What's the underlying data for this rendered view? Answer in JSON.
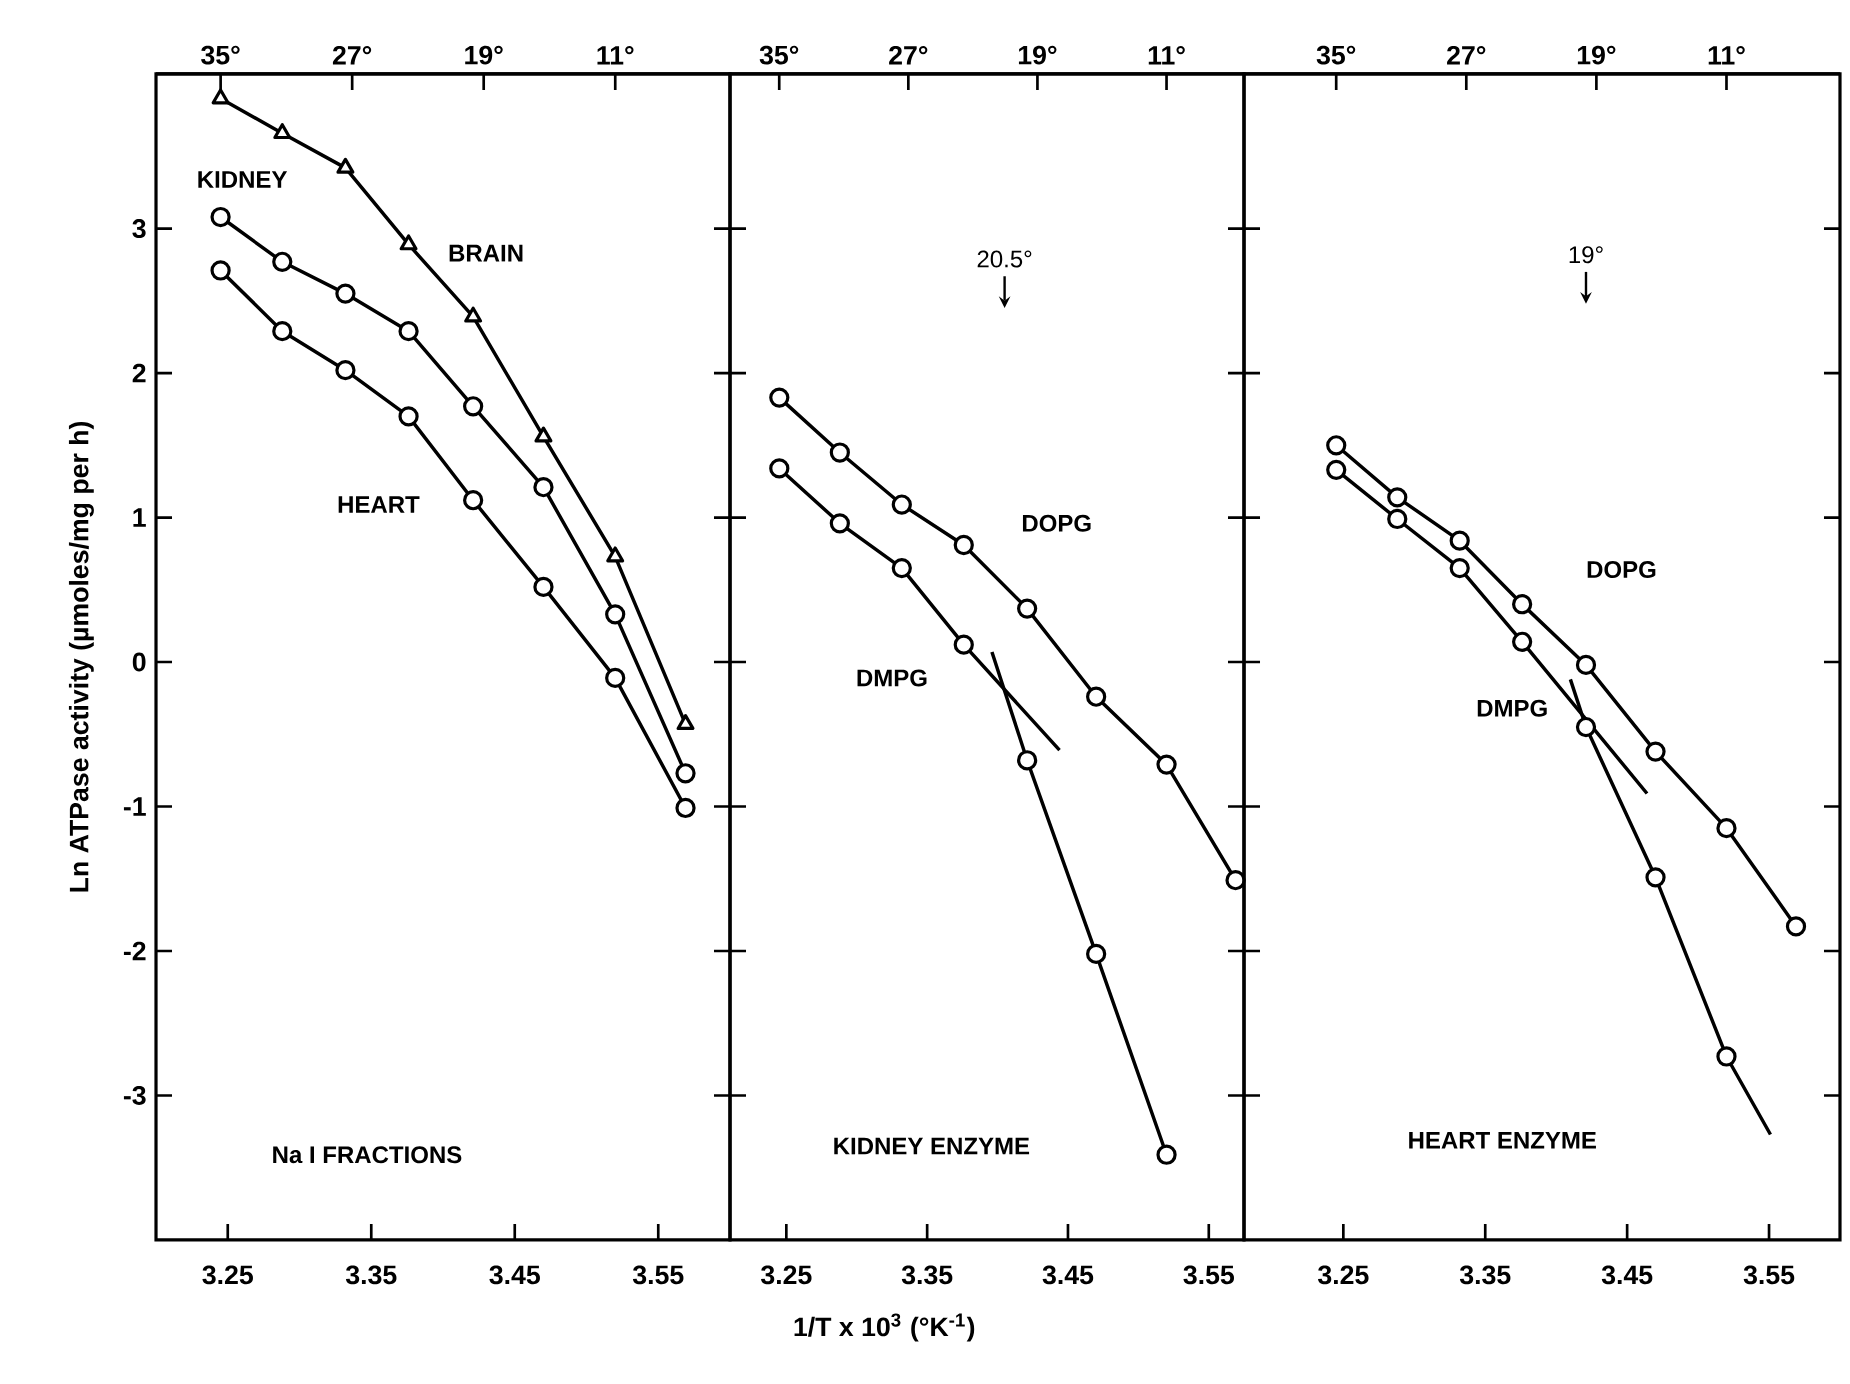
{
  "chart_data": [
    {
      "type": "line",
      "ylabel": "Ln ATPase activity (µmoles/mg per h)",
      "xlim": [
        3.2,
        3.6
      ],
      "ylim": [
        -4.0,
        4.07
      ],
      "xticks": [
        3.25,
        3.35,
        3.45,
        3.55
      ],
      "yticks": [
        -3,
        -2,
        -1,
        0,
        1,
        2,
        3
      ],
      "x2lim": [
        38.93,
        4.02
      ],
      "x2ticks": [
        {
          "value": 35,
          "label": "35°"
        },
        {
          "value": 27,
          "label": "27°"
        },
        {
          "value": 19,
          "label": "19°"
        },
        {
          "value": 11,
          "label": "11°"
        }
      ],
      "annotations": [
        "Na I FRACTIONS"
      ],
      "series": [
        {
          "name": "KIDNEY",
          "color": "#000000",
          "marker": "circle",
          "x": [
            3.245,
            3.288,
            3.332,
            3.376,
            3.421,
            3.47,
            3.52,
            3.569
          ],
          "values": [
            3.08,
            2.77,
            2.55,
            2.29,
            1.77,
            1.21,
            0.33,
            -0.77
          ]
        },
        {
          "name": "BRAIN",
          "color": "#000000",
          "marker": "triangle",
          "x": [
            3.245,
            3.288,
            3.332,
            3.376,
            3.421,
            3.47,
            3.52,
            3.569
          ],
          "values": [
            3.9,
            3.66,
            3.42,
            2.89,
            2.39,
            1.56,
            0.73,
            -0.43
          ]
        },
        {
          "name": "HEART",
          "color": "#000000",
          "marker": "circle",
          "x": [
            3.245,
            3.288,
            3.332,
            3.376,
            3.421,
            3.47,
            3.52,
            3.569
          ],
          "values": [
            2.71,
            2.29,
            2.02,
            1.7,
            1.12,
            0.52,
            -0.11,
            -1.01
          ]
        }
      ]
    },
    {
      "type": "line",
      "xlabel": "1/T x 10$^{3}$ (°K$^{-1}$)",
      "tick_labels": "x",
      "xlim": [
        3.21,
        3.575
      ],
      "ylim": [
        -4.0,
        4.07
      ],
      "xticks": [
        3.25,
        3.35,
        3.45,
        3.55
      ],
      "yticks": [
        -3,
        -2,
        -1,
        0,
        1,
        2,
        3
      ],
      "x2lim": [
        38.05,
        6.2
      ],
      "x2ticks": [
        {
          "value": 35,
          "label": "35°"
        },
        {
          "value": 27,
          "label": "27°"
        },
        {
          "value": 19,
          "label": "19°"
        },
        {
          "value": 11,
          "label": "11°"
        }
      ],
      "annotations": [
        "KIDNEY ENZYME",
        "20.5°"
      ],
      "series": [
        {
          "name": "DOPG",
          "color": "#000000",
          "marker": "circle",
          "x": [
            3.245,
            3.288,
            3.332,
            3.376,
            3.421,
            3.47,
            3.52,
            3.569
          ],
          "values": [
            1.83,
            1.45,
            1.09,
            0.81,
            0.37,
            -0.24,
            -0.71,
            -1.51
          ]
        },
        {
          "name": "DMPG",
          "type": "scatter",
          "color": "#000000",
          "marker": "circle",
          "x": [
            3.245,
            3.288,
            3.332,
            3.376,
            3.421,
            3.47,
            3.52
          ],
          "values": [
            1.34,
            0.96,
            0.65,
            0.12,
            -0.68,
            -2.02,
            -3.41
          ]
        },
        {
          "type": "line",
          "color": "#000000",
          "marker": "none",
          "x": [
            3.245,
            3.288,
            3.332,
            3.376,
            3.444
          ],
          "values": [
            1.34,
            0.96,
            0.65,
            0.12,
            -0.61
          ]
        },
        {
          "type": "line",
          "color": "#000000",
          "marker": "none",
          "x": [
            3.396,
            3.421,
            3.47,
            3.52
          ],
          "values": [
            0.07,
            -0.68,
            -2.02,
            -3.41
          ]
        }
      ]
    },
    {
      "type": "line",
      "tick_labels": "x",
      "xlim": [
        3.18,
        3.6
      ],
      "ylim": [
        -4.0,
        4.07
      ],
      "xticks": [
        3.25,
        3.35,
        3.45,
        3.55
      ],
      "yticks": [
        -3,
        -2,
        -1,
        0,
        1,
        2,
        3
      ],
      "x2lim": [
        40.67,
        4.02
      ],
      "x2ticks": [
        {
          "value": 35,
          "label": "35°"
        },
        {
          "value": 27,
          "label": "27°"
        },
        {
          "value": 19,
          "label": "19°"
        },
        {
          "value": 11,
          "label": "11°"
        }
      ],
      "annotations": [
        "HEART ENZYME",
        "19°"
      ],
      "series": [
        {
          "name": "DOPG",
          "color": "#000000",
          "marker": "circle",
          "x": [
            3.245,
            3.288,
            3.332,
            3.376,
            3.421,
            3.47,
            3.52,
            3.569
          ],
          "values": [
            1.5,
            1.14,
            0.84,
            0.4,
            -0.02,
            -0.62,
            -1.15,
            -1.83
          ]
        },
        {
          "name": "DMPG",
          "type": "scatter",
          "color": "#000000",
          "marker": "circle",
          "x": [
            3.245,
            3.288,
            3.332,
            3.376,
            3.421,
            3.47,
            3.52
          ],
          "values": [
            1.33,
            0.99,
            0.65,
            0.14,
            -0.45,
            -1.49,
            -2.73
          ]
        },
        {
          "type": "line",
          "color": "#000000",
          "marker": "none",
          "x": [
            3.245,
            3.288,
            3.332,
            3.376,
            3.464
          ],
          "values": [
            1.33,
            0.99,
            0.65,
            0.14,
            -0.91
          ]
        },
        {
          "type": "line",
          "color": "#000000",
          "marker": "none",
          "x": [
            3.41,
            3.421,
            3.47,
            3.52,
            3.551
          ],
          "values": [
            -0.12,
            -0.45,
            -1.49,
            -2.73,
            -3.27
          ]
        }
      ]
    }
  ]
}
